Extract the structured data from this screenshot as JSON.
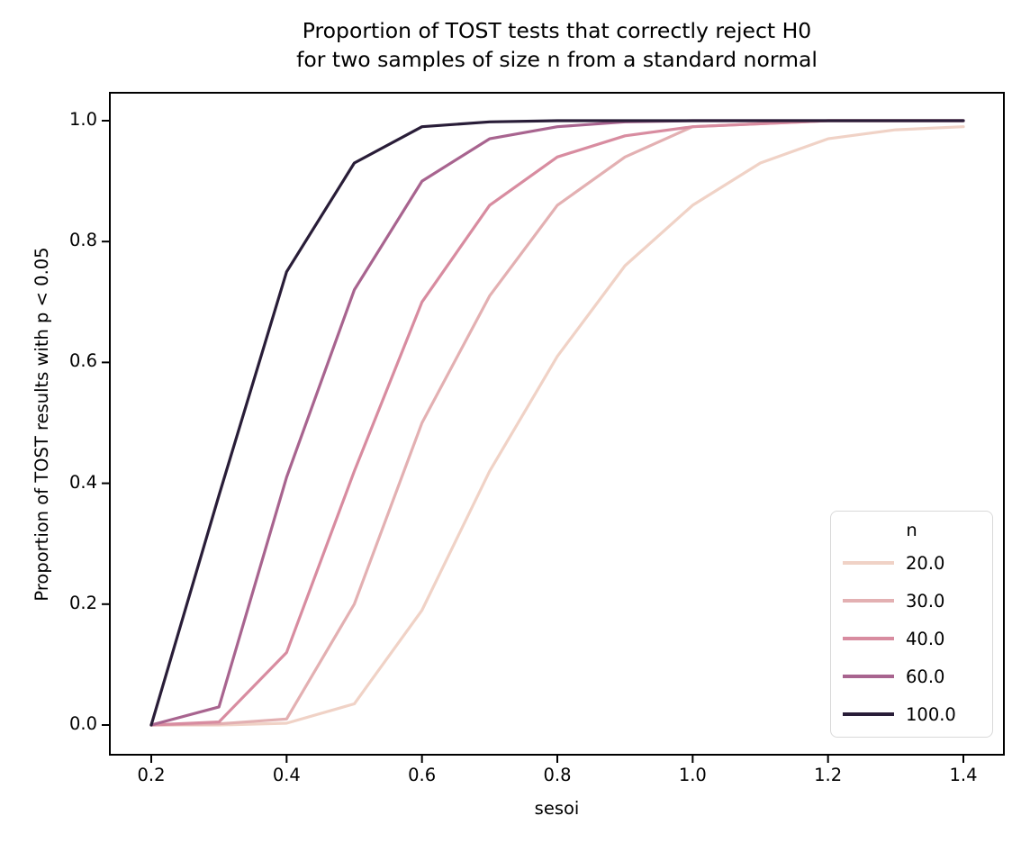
{
  "figure": {
    "background": "#ffffff",
    "text_color": "#000000",
    "spine_color": "#000000"
  },
  "chart_data": {
    "type": "line",
    "title_line1": "Proportion of TOST tests that correctly reject H0",
    "title_line2": "for two samples of size n from a standard normal",
    "xlabel": "sesoi",
    "ylabel": "Proportion of TOST results with p < 0.05",
    "x": [
      0.2,
      0.3,
      0.4,
      0.5,
      0.6,
      0.7,
      0.8,
      0.9,
      1.0,
      1.1,
      1.2,
      1.3,
      1.4
    ],
    "series": [
      {
        "name": "20.0",
        "color": "#f0d2c6",
        "values": [
          0.0,
          0.0,
          0.003,
          0.035,
          0.19,
          0.42,
          0.61,
          0.76,
          0.86,
          0.93,
          0.97,
          0.985,
          0.99
        ]
      },
      {
        "name": "30.0",
        "color": "#e3b0b2",
        "values": [
          0.0,
          0.002,
          0.01,
          0.2,
          0.5,
          0.71,
          0.86,
          0.94,
          0.99,
          0.995,
          1.0,
          1.0,
          1.0
        ]
      },
      {
        "name": "40.0",
        "color": "#d88ca0",
        "values": [
          0.0,
          0.005,
          0.12,
          0.42,
          0.7,
          0.86,
          0.94,
          0.975,
          0.99,
          0.995,
          1.0,
          1.0,
          1.0
        ]
      },
      {
        "name": "60.0",
        "color": "#a8648f",
        "values": [
          0.0,
          0.03,
          0.41,
          0.72,
          0.9,
          0.97,
          0.99,
          0.998,
          1.0,
          1.0,
          1.0,
          1.0,
          1.0
        ]
      },
      {
        "name": "100.0",
        "color": "#291d38",
        "values": [
          0.0,
          0.38,
          0.75,
          0.93,
          0.99,
          0.998,
          1.0,
          1.0,
          1.0,
          1.0,
          1.0,
          1.0,
          1.0
        ]
      }
    ],
    "xticks": {
      "values": [
        0.2,
        0.4,
        0.6,
        0.8,
        1.0,
        1.2,
        1.4
      ],
      "labels": [
        "0.2",
        "0.4",
        "0.6",
        "0.8",
        "1.0",
        "1.2",
        "1.4"
      ]
    },
    "yticks": {
      "values": [
        0.0,
        0.2,
        0.4,
        0.6,
        0.8,
        1.0
      ],
      "labels": [
        "0.0",
        "0.2",
        "0.4",
        "0.6",
        "0.8",
        "1.0"
      ]
    },
    "xlim": [
      0.1388,
      1.4612
    ],
    "ylim": [
      -0.0492,
      1.0462
    ],
    "grid": false,
    "legend": {
      "title": "n",
      "position": "lower right"
    }
  }
}
